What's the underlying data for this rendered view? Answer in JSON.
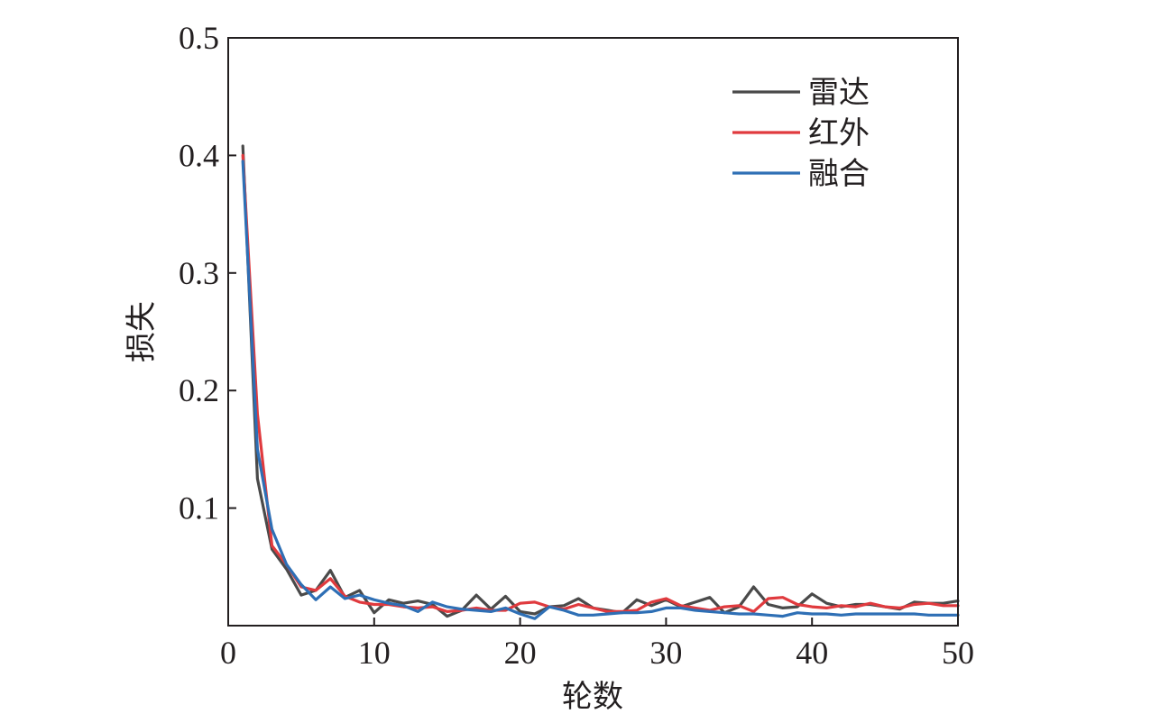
{
  "chart_data": {
    "type": "line",
    "xlabel": "轮数",
    "ylabel": "损失",
    "xlim": [
      0,
      50
    ],
    "ylim": [
      0,
      0.5
    ],
    "xticks": [
      "0",
      "10",
      "20",
      "30",
      "40",
      "50"
    ],
    "yticks": [
      "0.1",
      "0.2",
      "0.3",
      "0.4",
      "0.5"
    ],
    "grid": false,
    "legend_position": "top-right",
    "series": [
      {
        "name": "雷达",
        "color": "#4a4a4a",
        "x": [
          1,
          2,
          3,
          4,
          5,
          6,
          7,
          8,
          9,
          10,
          11,
          12,
          13,
          14,
          15,
          16,
          17,
          18,
          19,
          20,
          21,
          22,
          23,
          24,
          25,
          26,
          27,
          28,
          29,
          30,
          31,
          32,
          33,
          34,
          35,
          36,
          37,
          38,
          39,
          40,
          41,
          42,
          43,
          44,
          45,
          46,
          47,
          48,
          49,
          50
        ],
        "y": [
          0.408,
          0.125,
          0.065,
          0.048,
          0.026,
          0.03,
          0.047,
          0.024,
          0.03,
          0.011,
          0.022,
          0.019,
          0.021,
          0.018,
          0.008,
          0.013,
          0.026,
          0.014,
          0.025,
          0.012,
          0.01,
          0.016,
          0.017,
          0.023,
          0.015,
          0.013,
          0.011,
          0.022,
          0.017,
          0.022,
          0.016,
          0.02,
          0.024,
          0.011,
          0.016,
          0.033,
          0.018,
          0.015,
          0.016,
          0.027,
          0.019,
          0.016,
          0.018,
          0.018,
          0.016,
          0.014,
          0.02,
          0.019,
          0.019,
          0.021
        ]
      },
      {
        "name": "红外",
        "color": "#e03a3e",
        "x": [
          1,
          2,
          3,
          4,
          5,
          6,
          7,
          8,
          9,
          10,
          11,
          12,
          13,
          14,
          15,
          16,
          17,
          18,
          19,
          20,
          21,
          22,
          23,
          24,
          25,
          26,
          27,
          28,
          29,
          30,
          31,
          32,
          33,
          34,
          35,
          36,
          37,
          38,
          39,
          40,
          41,
          42,
          43,
          44,
          45,
          46,
          47,
          48,
          49,
          50
        ],
        "y": [
          0.4,
          0.18,
          0.068,
          0.052,
          0.033,
          0.03,
          0.04,
          0.025,
          0.02,
          0.018,
          0.018,
          0.016,
          0.015,
          0.016,
          0.012,
          0.013,
          0.015,
          0.013,
          0.013,
          0.019,
          0.02,
          0.016,
          0.014,
          0.018,
          0.015,
          0.012,
          0.012,
          0.013,
          0.02,
          0.023,
          0.017,
          0.015,
          0.013,
          0.016,
          0.017,
          0.012,
          0.023,
          0.024,
          0.018,
          0.016,
          0.015,
          0.017,
          0.016,
          0.019,
          0.016,
          0.015,
          0.018,
          0.019,
          0.017,
          0.017
        ]
      },
      {
        "name": "融合",
        "color": "#2e6fb5",
        "x": [
          1,
          2,
          3,
          4,
          5,
          6,
          7,
          8,
          9,
          10,
          11,
          12,
          13,
          14,
          15,
          16,
          17,
          18,
          19,
          20,
          21,
          22,
          23,
          24,
          25,
          26,
          27,
          28,
          29,
          30,
          31,
          32,
          33,
          34,
          35,
          36,
          37,
          38,
          39,
          40,
          41,
          42,
          43,
          44,
          45,
          46,
          47,
          48,
          49,
          50
        ],
        "y": [
          0.395,
          0.15,
          0.082,
          0.052,
          0.035,
          0.022,
          0.033,
          0.023,
          0.026,
          0.022,
          0.019,
          0.017,
          0.012,
          0.02,
          0.016,
          0.014,
          0.013,
          0.012,
          0.015,
          0.01,
          0.006,
          0.016,
          0.013,
          0.009,
          0.009,
          0.01,
          0.011,
          0.011,
          0.012,
          0.015,
          0.015,
          0.013,
          0.012,
          0.011,
          0.01,
          0.01,
          0.009,
          0.008,
          0.011,
          0.01,
          0.01,
          0.009,
          0.01,
          0.01,
          0.01,
          0.01,
          0.01,
          0.009,
          0.009,
          0.009
        ]
      }
    ]
  }
}
